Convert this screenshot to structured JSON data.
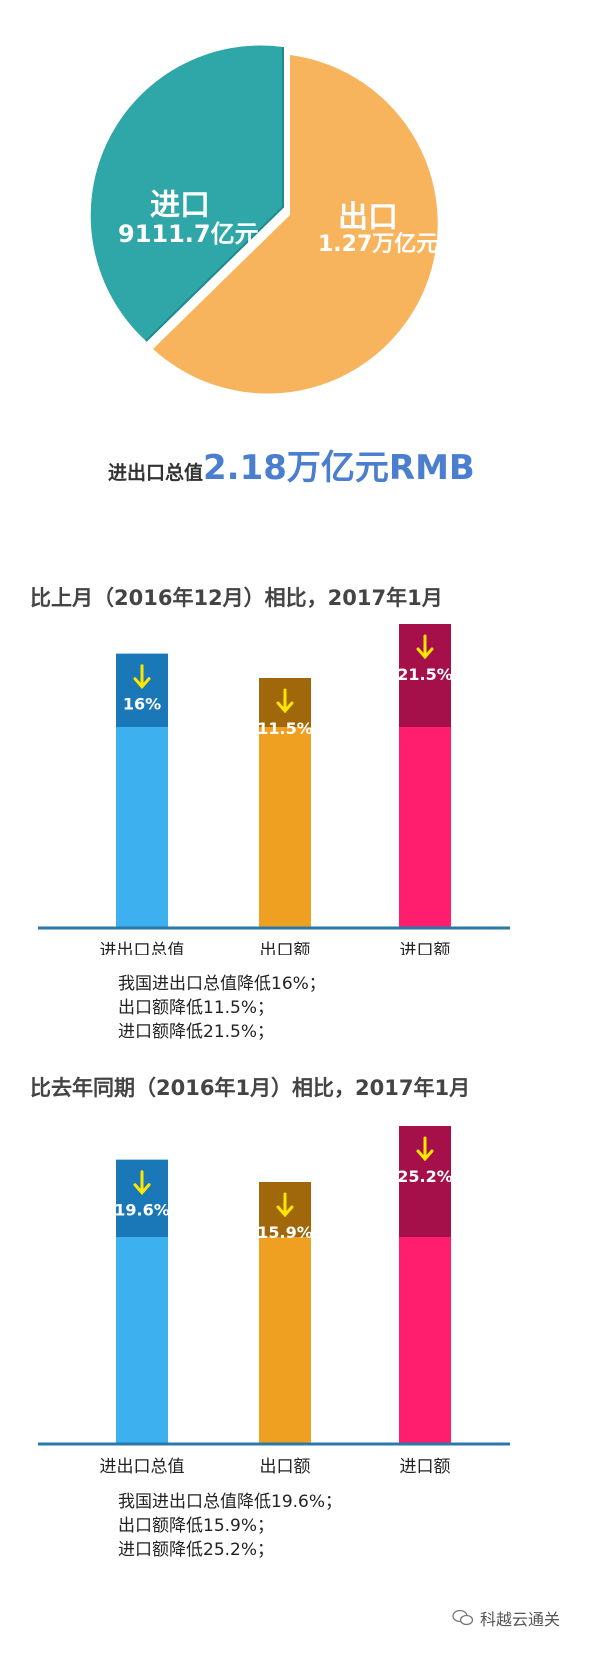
{
  "pie": {
    "import_label": "进口",
    "import_value": "9111.7亿元",
    "export_label": "出口",
    "export_value": "1.27万亿元",
    "total_label": "进出口总值",
    "total_value": "2.18万亿元RMB",
    "colors": {
      "import": "#2fa7a8",
      "export": "#f7b45c"
    }
  },
  "chart_data": [
    {
      "type": "bar",
      "title": "比上月（2016年12月）相比，2017年1月",
      "categories": [
        "进出口总值",
        "出口额",
        "进口额"
      ],
      "series": [
        {
          "values": [
            16,
            11.5,
            21.5
          ]
        }
      ],
      "value_labels": [
        "16%",
        "11.5%",
        "21.5%"
      ],
      "colors": [
        "#3db0f0",
        "#f0a020",
        "#ff1e6e"
      ],
      "cap_colors": [
        "#1a78b8",
        "#a0680a",
        "#a5104a"
      ],
      "arrow": "down-arrow-icon"
    },
    {
      "type": "bar",
      "title": "比去年同期（2016年1月）相比，2017年1月",
      "categories": [
        "进出口总值",
        "出口额",
        "进口额"
      ],
      "series": [
        {
          "values": [
            19.6,
            15.9,
            25.2
          ]
        }
      ],
      "value_labels": [
        "19.6%",
        "15.9%",
        "25.2%"
      ],
      "colors": [
        "#3db0f0",
        "#f0a020",
        "#ff1e6e"
      ],
      "cap_colors": [
        "#1a78b8",
        "#a0680a",
        "#a5104a"
      ],
      "arrow": "down-arrow-icon"
    }
  ],
  "notes1": [
    "我国进出口总值降低16%；",
    "出口额降低11.5%；",
    "进口额降低21.5%；"
  ],
  "notes2": [
    "我国进出口总值降低19.6%；",
    "出口额降低15.9%；",
    "进口额降低25.2%；"
  ],
  "watermark": "科越云通关"
}
